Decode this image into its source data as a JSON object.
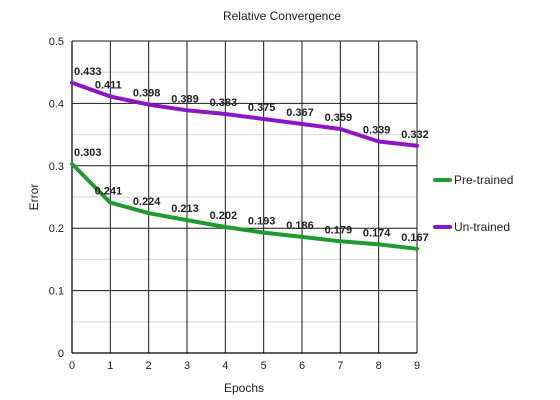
{
  "chart_data": {
    "type": "line",
    "title": "Relative Convergence",
    "xlabel": "Epochs",
    "ylabel": "Error",
    "x": [
      0,
      1,
      2,
      3,
      4,
      5,
      6,
      7,
      8,
      9
    ],
    "xlim": [
      0,
      9
    ],
    "ylim": [
      0,
      0.5
    ],
    "yticks": [
      "0",
      "0.1",
      "0.2",
      "0.3",
      "0.4",
      "0.5"
    ],
    "xticks": [
      "0",
      "1",
      "2",
      "3",
      "4",
      "5",
      "6",
      "7",
      "8",
      "9"
    ],
    "grid": true,
    "legend_position": "right",
    "series": [
      {
        "name": "Pre-trained",
        "color": "#1f9a2e",
        "values": [
          0.303,
          0.241,
          0.224,
          0.213,
          0.202,
          0.193,
          0.186,
          0.179,
          0.174,
          0.167
        ],
        "labels": [
          "0.303",
          "0.241",
          "0.224",
          "0.213",
          "0.202",
          "0.193",
          "0.186",
          "0.179",
          "0.174",
          "0.167"
        ]
      },
      {
        "name": "Un-trained",
        "color": "#8b17c4",
        "values": [
          0.433,
          0.411,
          0.398,
          0.389,
          0.383,
          0.375,
          0.367,
          0.359,
          0.339,
          0.332
        ],
        "labels": [
          "0.433",
          "0.411",
          "0.398",
          "0.389",
          "0.383",
          "0.375",
          "0.367",
          "0.359",
          "0.339",
          "0.332"
        ]
      }
    ]
  }
}
